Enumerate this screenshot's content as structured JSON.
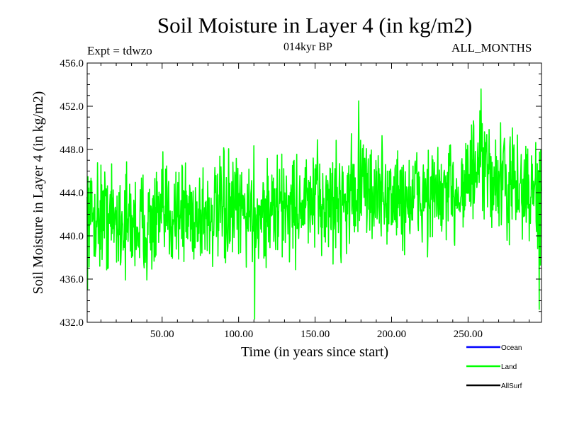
{
  "chart_data": {
    "type": "line",
    "title": "Soil Moisture in Layer 4 (in kg/m2)",
    "subtitle": "014kyr BP",
    "annotations": {
      "left": "Expt = tdwzo",
      "right": "ALL_MONTHS"
    },
    "xlabel": "Time (in years since start)",
    "ylabel": "Soil Moisture in Layer 4 (in kg/m2)",
    "xlim": [
      1,
      298
    ],
    "ylim": [
      432.0,
      456.0
    ],
    "x_ticks": [
      50,
      100,
      150,
      200,
      250
    ],
    "x_tick_labels": [
      "50.00",
      "100.00",
      "150.00",
      "200.00",
      "250.00"
    ],
    "y_ticks": [
      432,
      436,
      440,
      444,
      448,
      452,
      456
    ],
    "y_tick_labels": [
      "432.0",
      "436.0",
      "440.0",
      "444.0",
      "448.0",
      "452.0",
      "456.0"
    ],
    "grid": false,
    "legend_position": "bottom-right",
    "legend": [
      {
        "name": "Ocean",
        "color": "#0000ff"
      },
      {
        "name": "Land",
        "color": "#00ff00"
      },
      {
        "name": "AllSurf",
        "color": "#000000"
      }
    ],
    "series": [
      {
        "name": "Land",
        "color": "#00ff00",
        "step": 0.25,
        "x_start": 1,
        "trend_x": [
          1,
          10,
          20,
          30,
          40,
          50,
          60,
          70,
          80,
          90,
          100,
          110,
          120,
          130,
          140,
          150,
          160,
          170,
          180,
          190,
          200,
          210,
          220,
          230,
          240,
          250,
          260,
          270,
          280,
          290,
          298
        ],
        "trend_y": [
          441.8,
          442.0,
          441.5,
          441.0,
          441.0,
          441.5,
          442.5,
          442.0,
          442.0,
          442.0,
          442.3,
          442.3,
          442.2,
          442.7,
          442.8,
          443.0,
          443.0,
          443.5,
          444.5,
          444.0,
          443.5,
          443.3,
          443.8,
          443.5,
          443.8,
          445.5,
          446.0,
          445.0,
          444.5,
          444.0,
          443.5
        ],
        "spread": 2.4,
        "extremes": [
          {
            "x": 110.5,
            "y": 432.3
          },
          {
            "x": 258.5,
            "y": 453.6
          },
          {
            "x": 178.5,
            "y": 452.5
          },
          {
            "x": 296.5,
            "y": 433.2
          }
        ]
      }
    ]
  }
}
